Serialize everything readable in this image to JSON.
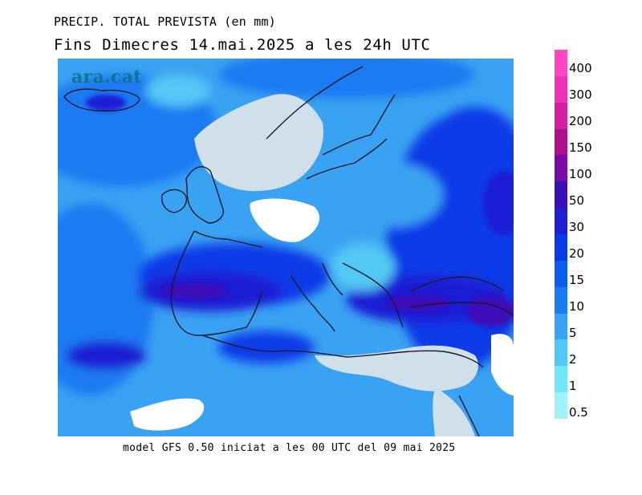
{
  "header": {
    "line1": "PRECIP. TOTAL PREVISTA (en mm)",
    "line2": "Fins Dimecres 14.mai.2025 a les 24h UTC"
  },
  "watermark": "ara.cat",
  "footer": "model GFS 0.50 iniciat a les 00 UTC del 09 mai 2025",
  "colors": {
    "land_dry": "#cfe0ea",
    "sea_dry": "#ffffff",
    "coast": "#1a1a2a"
  },
  "legend": {
    "levels": [
      {
        "label": "400",
        "color": "#ff44c4"
      },
      {
        "label": "300",
        "color": "#ef30b4"
      },
      {
        "label": "200",
        "color": "#d81ea0"
      },
      {
        "label": "150",
        "color": "#b0108a"
      },
      {
        "label": "100",
        "color": "#7a0aa8"
      },
      {
        "label": "50",
        "color": "#3c10b8"
      },
      {
        "label": "30",
        "color": "#1e1ed4"
      },
      {
        "label": "20",
        "color": "#0a3ae8"
      },
      {
        "label": "15",
        "color": "#0c5cf0"
      },
      {
        "label": "10",
        "color": "#1a7af2"
      },
      {
        "label": "5",
        "color": "#3aa2f2"
      },
      {
        "label": "2",
        "color": "#52c8f4"
      },
      {
        "label": "1",
        "color": "#72e6f6"
      },
      {
        "label": "0.5",
        "color": "#a0f2fb"
      }
    ]
  }
}
